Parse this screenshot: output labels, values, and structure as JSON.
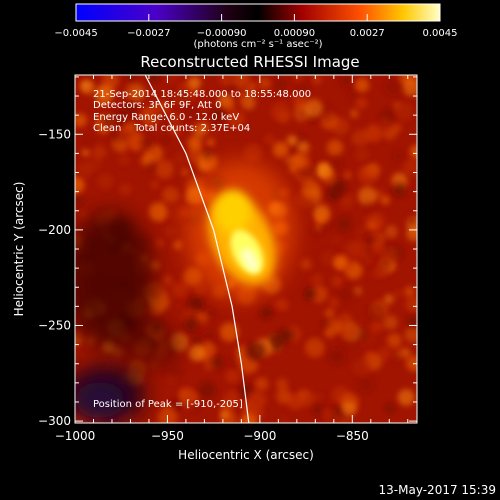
{
  "colorbar": {
    "tick_labels": [
      "−0.0045",
      "−0.0027",
      "−0.00090",
      "0.00090",
      "0.0027",
      "0.0045"
    ],
    "units_label": "(photons cm⁻² s⁻¹ asec⁻²)",
    "colors": [
      "#0000ff",
      "#000000",
      "#ff0000",
      "#ffff00",
      "#ffffff"
    ]
  },
  "chart_data": {
    "type": "heatmap",
    "title": "Reconstructed RHESSI Image",
    "xlabel": "Heliocentric X (arcsec)",
    "ylabel": "Heliocentric Y (arcsec)",
    "xlim": [
      -1000,
      -815
    ],
    "ylim": [
      -301,
      -119
    ],
    "x_ticks": [
      -1000,
      -950,
      -900,
      -850
    ],
    "x_tick_labels": [
      "−1000",
      "−950",
      "−900",
      "−850"
    ],
    "y_ticks": [
      -150,
      -200,
      -250,
      -300
    ],
    "y_tick_labels": [
      "−150",
      "−200",
      "−250",
      "−300"
    ],
    "zlim": [
      -0.0045,
      0.0045
    ],
    "peak": {
      "x": -910,
      "y": -205,
      "value": 0.0045
    },
    "limb_curve": [
      [
        -962,
        -119
      ],
      [
        -940,
        -160
      ],
      [
        -925,
        -200
      ],
      [
        -915,
        -240
      ],
      [
        -910,
        -270
      ],
      [
        -906,
        -301
      ]
    ],
    "colors": {
      "limb": "#ffffff",
      "background": "#000000"
    }
  },
  "annotations": {
    "time_range": "21-Sep-2014 18:45:48.000 to 18:55:48.000",
    "detectors": "Detectors: 3F 6F 9F, Att 0",
    "energy": "Energy Range: 6.0 - 12.0 keV",
    "clean": "Clean    Total counts: 2.37E+04",
    "peak_position": "Position of Peak = [-910,-205]"
  },
  "footer": {
    "date": "13-May-2017 15:39"
  }
}
